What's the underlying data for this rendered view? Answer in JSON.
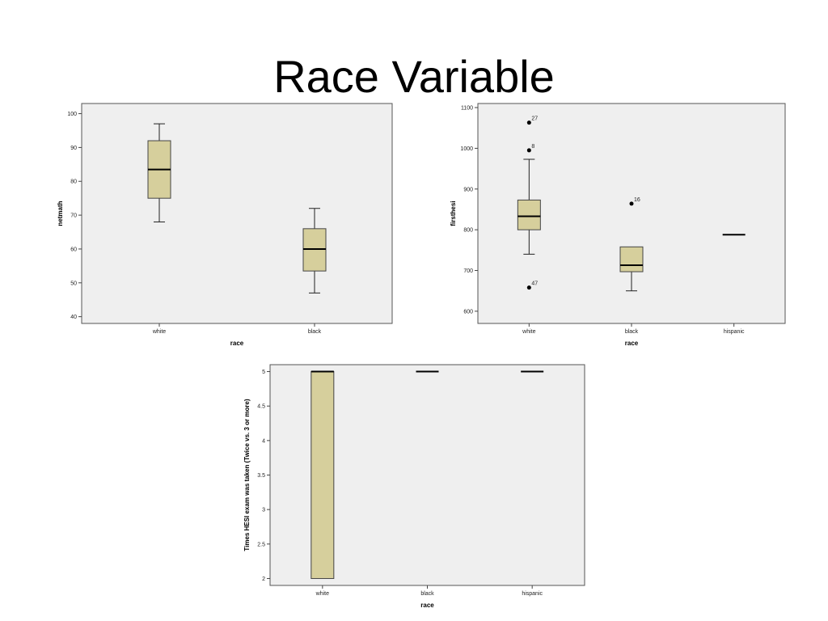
{
  "slide": {
    "title": "Race Variable"
  },
  "chart_data": [
    {
      "type": "boxplot",
      "xlabel": "race",
      "ylabel": "netmath",
      "ylim": [
        38,
        103
      ],
      "yticks": [
        40,
        50,
        60,
        70,
        80,
        90,
        100
      ],
      "categories": [
        "white",
        "black"
      ],
      "boxes": [
        {
          "category": "white",
          "whisker_low": 68,
          "q1": 75,
          "median": 83.5,
          "q3": 92,
          "whisker_high": 97,
          "outliers": []
        },
        {
          "category": "black",
          "whisker_low": 47,
          "q1": 53.5,
          "median": 60,
          "q3": 66,
          "whisker_high": 72,
          "outliers": []
        }
      ],
      "box_color": "#d6cf9c"
    },
    {
      "type": "boxplot",
      "xlabel": "race",
      "ylabel": "firsthesi",
      "ylim": [
        570,
        1110
      ],
      "yticks": [
        600,
        700,
        800,
        900,
        1000,
        1100
      ],
      "categories": [
        "white",
        "black",
        "hispanic"
      ],
      "boxes": [
        {
          "category": "white",
          "whisker_low": 740,
          "q1": 800,
          "median": 833,
          "q3": 873,
          "whisker_high": 973,
          "outliers": [
            {
              "value": 1063,
              "label": "27"
            },
            {
              "value": 995,
              "label": "8"
            },
            {
              "value": 658,
              "label": "47"
            }
          ]
        },
        {
          "category": "black",
          "whisker_low": 650,
          "q1": 697,
          "median": 713,
          "q3": 758,
          "whisker_high": 758,
          "outliers": [
            {
              "value": 864,
              "label": "16"
            }
          ]
        },
        {
          "category": "hispanic",
          "whisker_low": 788,
          "q1": 788,
          "median": 788,
          "q3": 788,
          "whisker_high": 788,
          "outliers": []
        }
      ],
      "box_color": "#d6cf9c"
    },
    {
      "type": "boxplot",
      "xlabel": "race",
      "ylabel": "Times HESI exam was taken (Twice vs. 3 or more)",
      "ylim": [
        1.9,
        5.1
      ],
      "yticks": [
        2,
        2.5,
        3,
        3.5,
        4,
        4.5,
        5
      ],
      "categories": [
        "white",
        "black",
        "hispanic"
      ],
      "boxes": [
        {
          "category": "white",
          "whisker_low": 2,
          "q1": 2,
          "median": 5,
          "q3": 5,
          "whisker_high": 5,
          "outliers": []
        },
        {
          "category": "black",
          "whisker_low": 5,
          "q1": 5,
          "median": 5,
          "q3": 5,
          "whisker_high": 5,
          "outliers": []
        },
        {
          "category": "hispanic",
          "whisker_low": 5,
          "q1": 5,
          "median": 5,
          "q3": 5,
          "whisker_high": 5,
          "outliers": []
        }
      ],
      "box_color": "#d6cf9c"
    }
  ]
}
